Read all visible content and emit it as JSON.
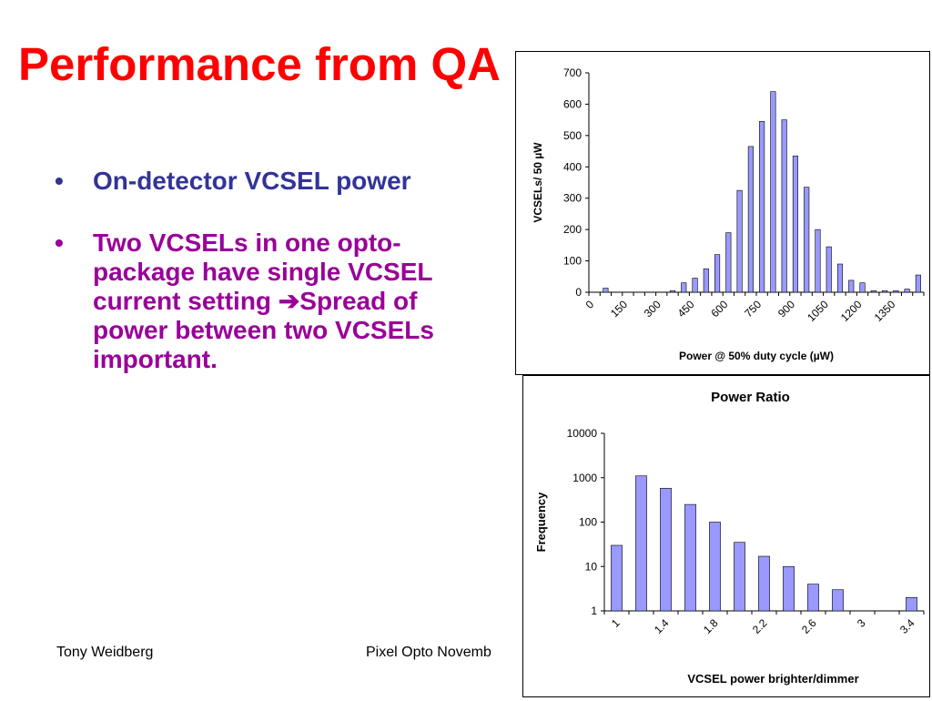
{
  "slide": {
    "title": "Performance from QA",
    "bullets": [
      {
        "text": "On-detector VCSEL power"
      },
      {
        "text_before": "Two VCSELs in one opto-package have single VCSEL current setting ",
        "arrow": "➔",
        "text_after": "Spread of power between two VCSELs important."
      }
    ],
    "footer_left": "Tony Weidberg",
    "footer_center": "Pixel Opto Novemb"
  },
  "chart_data": [
    {
      "type": "bar",
      "title": "",
      "xlabel": "Power @ 50% duty cycle (µW)",
      "ylabel": "VCSELs/ 50 µW",
      "bar_color": "#9999ff",
      "ylim": [
        0,
        700
      ],
      "yticks": [
        0,
        100,
        200,
        300,
        400,
        500,
        600,
        700
      ],
      "xtick_labels": [
        "0",
        "150",
        "300",
        "450",
        "600",
        "750",
        "900",
        "1050",
        "1200",
        "1350"
      ],
      "x": [
        0,
        50,
        100,
        150,
        200,
        250,
        300,
        350,
        400,
        450,
        500,
        550,
        600,
        650,
        700,
        750,
        800,
        850,
        900,
        950,
        1000,
        1050,
        1100,
        1150,
        1200,
        1250,
        1300,
        1350,
        1400,
        1450
      ],
      "values": [
        0,
        13,
        0,
        0,
        0,
        0,
        0,
        5,
        30,
        45,
        75,
        120,
        190,
        325,
        465,
        545,
        640,
        550,
        435,
        335,
        200,
        145,
        90,
        38,
        30,
        5,
        5,
        5,
        10,
        55
      ],
      "grid": false,
      "legend": "none"
    },
    {
      "type": "bar",
      "title": "Power Ratio",
      "xlabel": "VCSEL power brighter/dimmer",
      "ylabel": "Frequency",
      "scale": "log",
      "bar_color": "#9999ff",
      "ylim": [
        1,
        10000
      ],
      "ytick_labels": [
        "1",
        "10",
        "100",
        "1000",
        "10000"
      ],
      "xtick_labels": [
        "1",
        "1.4",
        "1.8",
        "2.2",
        "2.6",
        "3",
        "3.4"
      ],
      "x": [
        1.0,
        1.2,
        1.4,
        1.6,
        1.8,
        2.0,
        2.2,
        2.4,
        2.6,
        2.8,
        3.0,
        3.2,
        3.4
      ],
      "values": [
        30,
        1100,
        580,
        250,
        100,
        35,
        17,
        10,
        4,
        3,
        1,
        1,
        2
      ],
      "grid": false,
      "legend": "none"
    }
  ]
}
